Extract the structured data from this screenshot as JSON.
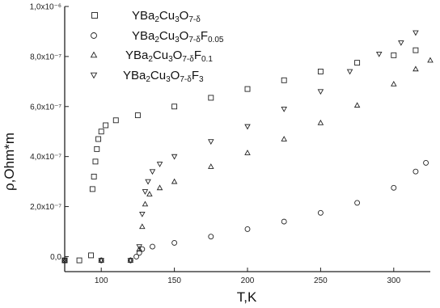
{
  "chart_data": {
    "type": "scatter",
    "xlabel": "T,K",
    "ylabel": "ρ,Ohm*m",
    "xlim": [
      75,
      325
    ],
    "ylim": [
      -6e-08,
      1e-06
    ],
    "xticks": [
      100,
      150,
      200,
      250,
      300
    ],
    "xtick_labels": [
      "100",
      "150",
      "200",
      "250",
      "300"
    ],
    "yticks": [
      0,
      2e-07,
      4e-07,
      6e-07,
      8e-07,
      1e-06
    ],
    "ytick_labels": [
      "0,0",
      "2,0x10⁻⁷",
      "4,0x10⁻⁷",
      "6,0x10⁻⁷",
      "8,0x10⁻⁷",
      "1,0x10⁻⁶"
    ],
    "grid": false,
    "legend_position": "top-left",
    "series": [
      {
        "name": "YBa2Cu3O7-δ",
        "legend_parts": [
          [
            "YBa",
            false
          ],
          [
            "2",
            true
          ],
          [
            "Cu",
            false
          ],
          [
            "3",
            true
          ],
          [
            "O",
            false
          ],
          [
            "7-δ",
            true
          ]
        ],
        "marker": "square",
        "points": [
          [
            75,
            -1.5e-08
          ],
          [
            85,
            -1.5e-08
          ],
          [
            93,
            5e-09
          ],
          [
            94,
            2.7e-07
          ],
          [
            95,
            3.2e-07
          ],
          [
            96,
            3.8e-07
          ],
          [
            97,
            4.3e-07
          ],
          [
            98,
            4.7e-07
          ],
          [
            100,
            5e-07
          ],
          [
            103,
            5.25e-07
          ],
          [
            110,
            5.45e-07
          ],
          [
            125,
            5.65e-07
          ],
          [
            150,
            6e-07
          ],
          [
            175,
            6.35e-07
          ],
          [
            200,
            6.7e-07
          ],
          [
            225,
            7.05e-07
          ],
          [
            250,
            7.4e-07
          ],
          [
            275,
            7.75e-07
          ],
          [
            300,
            8.05e-07
          ],
          [
            315,
            8.25e-07
          ]
        ]
      },
      {
        "name": "YBa2Cu3O7-δF0.05",
        "legend_parts": [
          [
            "YBa",
            false
          ],
          [
            "2",
            true
          ],
          [
            "Cu",
            false
          ],
          [
            "3",
            true
          ],
          [
            "O",
            false
          ],
          [
            "7-δ",
            true
          ],
          [
            "F",
            false
          ],
          [
            "0.05",
            true
          ]
        ],
        "marker": "circle",
        "points": [
          [
            75,
            -1.5e-08
          ],
          [
            100,
            -1.5e-08
          ],
          [
            120,
            -1.5e-08
          ],
          [
            124,
            0.0
          ],
          [
            126,
            1.5e-08
          ],
          [
            128,
            3e-08
          ],
          [
            135,
            4e-08
          ],
          [
            150,
            5.5e-08
          ],
          [
            175,
            8e-08
          ],
          [
            200,
            1.1e-07
          ],
          [
            225,
            1.4e-07
          ],
          [
            250,
            1.75e-07
          ],
          [
            275,
            2.15e-07
          ],
          [
            300,
            2.75e-07
          ],
          [
            315,
            3.4e-07
          ],
          [
            322,
            3.75e-07
          ]
        ]
      },
      {
        "name": "YBa2Cu3O7-δF0.1",
        "legend_parts": [
          [
            "YBa",
            false
          ],
          [
            "2",
            true
          ],
          [
            "Cu",
            false
          ],
          [
            "3",
            true
          ],
          [
            "O",
            false
          ],
          [
            "7-δ",
            true
          ],
          [
            "F",
            false
          ],
          [
            "0.1",
            true
          ]
        ],
        "marker": "triangle-up",
        "points": [
          [
            75,
            -1.5e-08
          ],
          [
            100,
            -1.5e-08
          ],
          [
            120,
            -1.5e-08
          ],
          [
            126,
            3e-08
          ],
          [
            128,
            1.2e-07
          ],
          [
            130,
            2.1e-07
          ],
          [
            133,
            2.5e-07
          ],
          [
            140,
            2.75e-07
          ],
          [
            150,
            3e-07
          ],
          [
            175,
            3.6e-07
          ],
          [
            200,
            4.15e-07
          ],
          [
            225,
            4.7e-07
          ],
          [
            250,
            5.35e-07
          ],
          [
            275,
            6.05e-07
          ],
          [
            300,
            6.9e-07
          ],
          [
            315,
            7.5e-07
          ],
          [
            325,
            7.85e-07
          ]
        ]
      },
      {
        "name": "YBa2Cu3O7-δF3",
        "legend_parts": [
          [
            "YBa",
            false
          ],
          [
            "2",
            true
          ],
          [
            "Cu",
            false
          ],
          [
            "3",
            true
          ],
          [
            "O",
            false
          ],
          [
            "7-δ",
            true
          ],
          [
            "F",
            false
          ],
          [
            "3",
            true
          ]
        ],
        "marker": "triangle-down",
        "points": [
          [
            75,
            -1.5e-08
          ],
          [
            100,
            -1.5e-08
          ],
          [
            120,
            -1.5e-08
          ],
          [
            126,
            4e-08
          ],
          [
            128,
            1.7e-07
          ],
          [
            130,
            2.6e-07
          ],
          [
            132,
            3e-07
          ],
          [
            135,
            3.4e-07
          ],
          [
            140,
            3.7e-07
          ],
          [
            150,
            4e-07
          ],
          [
            175,
            4.6e-07
          ],
          [
            200,
            5.2e-07
          ],
          [
            225,
            5.9e-07
          ],
          [
            250,
            6.6e-07
          ],
          [
            270,
            7.4e-07
          ],
          [
            290,
            8.1e-07
          ],
          [
            305,
            8.55e-07
          ],
          [
            315,
            8.95e-07
          ]
        ]
      }
    ]
  }
}
